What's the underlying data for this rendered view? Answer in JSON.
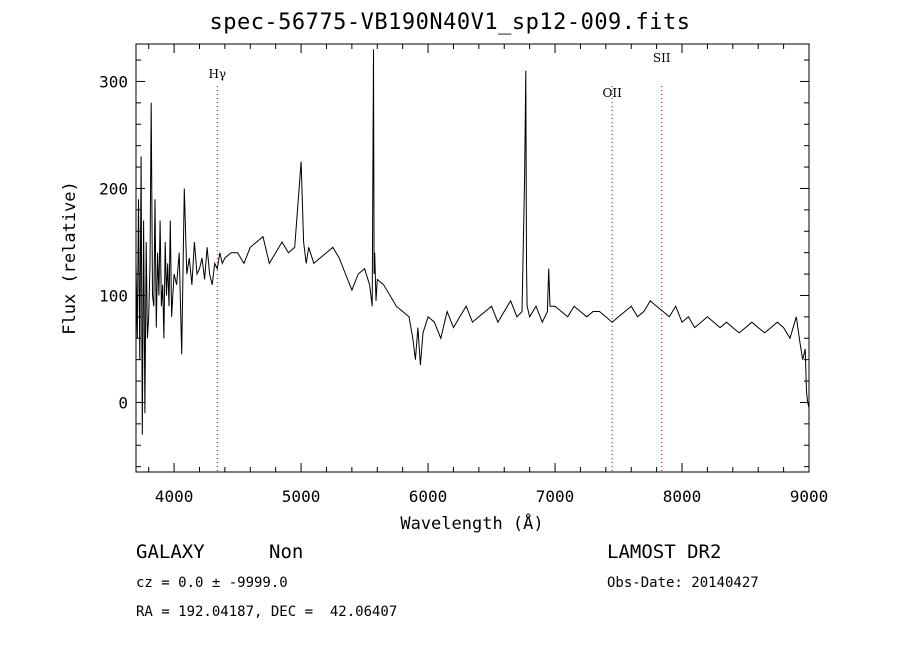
{
  "chart_data": {
    "type": "line",
    "title": "spec-56775-VB190N40V1_sp12-009.fits",
    "xlabel": "Wavelength (Å)",
    "ylabel": "Flux (relative)",
    "xlim": [
      3700,
      9000
    ],
    "ylim": [
      -65,
      335
    ],
    "x_ticks": [
      4000,
      5000,
      6000,
      7000,
      8000,
      9000
    ],
    "y_ticks": [
      0,
      100,
      200,
      300
    ],
    "grid": false,
    "line_color": "#000000",
    "series": [
      {
        "x": [
          3700,
          3710,
          3720,
          3730,
          3740,
          3750,
          3760,
          3770,
          3780,
          3790,
          3800,
          3810,
          3820,
          3830,
          3840,
          3850,
          3860,
          3870,
          3880,
          3890,
          3900,
          3910,
          3920,
          3930,
          3940,
          3950,
          3960,
          3970,
          3980,
          3990,
          4000,
          4020,
          4040,
          4060,
          4080,
          4100,
          4120,
          4140,
          4160,
          4180,
          4200,
          4220,
          4240,
          4260,
          4280,
          4300,
          4320,
          4340,
          4360,
          4380,
          4400,
          4450,
          4500,
          4550,
          4600,
          4650,
          4700,
          4750,
          4800,
          4850,
          4900,
          4950,
          5000,
          5020,
          5040,
          5060,
          5100,
          5150,
          5200,
          5250,
          5300,
          5350,
          5400,
          5450,
          5500,
          5540,
          5560,
          5570,
          5575,
          5580,
          5590,
          5600,
          5650,
          5700,
          5750,
          5800,
          5850,
          5880,
          5900,
          5920,
          5940,
          5960,
          6000,
          6050,
          6100,
          6150,
          6200,
          6250,
          6300,
          6350,
          6400,
          6450,
          6500,
          6550,
          6600,
          6650,
          6700,
          6740,
          6760,
          6770,
          6775,
          6780,
          6790,
          6800,
          6850,
          6900,
          6940,
          6950,
          6960,
          7000,
          7050,
          7100,
          7150,
          7200,
          7250,
          7300,
          7350,
          7400,
          7450,
          7500,
          7550,
          7600,
          7650,
          7700,
          7750,
          7800,
          7850,
          7900,
          7950,
          8000,
          8050,
          8100,
          8150,
          8200,
          8250,
          8300,
          8350,
          8400,
          8450,
          8500,
          8550,
          8600,
          8650,
          8700,
          8750,
          8800,
          8850,
          8900,
          8930,
          8950,
          8970,
          8980,
          8990,
          9000
        ],
        "y": [
          130,
          60,
          190,
          40,
          230,
          -30,
          170,
          -10,
          150,
          60,
          80,
          130,
          280,
          100,
          90,
          190,
          70,
          140,
          100,
          170,
          90,
          110,
          60,
          150,
          100,
          130,
          90,
          170,
          80,
          100,
          120,
          110,
          140,
          45,
          200,
          120,
          135,
          110,
          150,
          120,
          125,
          135,
          115,
          145,
          120,
          110,
          130,
          125,
          140,
          130,
          135,
          140,
          140,
          130,
          145,
          150,
          155,
          130,
          140,
          150,
          140,
          145,
          225,
          150,
          130,
          145,
          130,
          135,
          140,
          145,
          135,
          120,
          105,
          120,
          125,
          110,
          90,
          330,
          120,
          140,
          95,
          115,
          110,
          100,
          90,
          85,
          80,
          60,
          40,
          70,
          35,
          65,
          80,
          75,
          60,
          85,
          70,
          80,
          90,
          75,
          80,
          85,
          90,
          75,
          85,
          95,
          80,
          85,
          210,
          310,
          130,
          90,
          85,
          80,
          90,
          75,
          85,
          125,
          90,
          90,
          85,
          80,
          90,
          85,
          80,
          85,
          85,
          80,
          75,
          80,
          85,
          90,
          80,
          85,
          95,
          90,
          85,
          80,
          90,
          75,
          80,
          70,
          75,
          80,
          75,
          70,
          75,
          70,
          65,
          70,
          75,
          70,
          65,
          70,
          75,
          70,
          60,
          80,
          55,
          40,
          50,
          10,
          0,
          -5
        ]
      }
    ],
    "annotations": [
      {
        "label": "Hγ",
        "x": 4340,
        "line_color": "#cc0000"
      },
      {
        "label": "OII",
        "x": 7450,
        "line_color": "#cc0000"
      },
      {
        "label": "SII",
        "x": 7840,
        "line_color": "#cc0000"
      }
    ]
  },
  "info": {
    "object_class": "GALAXY",
    "subclass": "Non",
    "survey": "LAMOST DR2",
    "cz": "cz = 0.0 ± -9999.0",
    "obs_date": "Obs-Date: 20140427",
    "coords": "RA = 192.04187, DEC =  42.06407"
  }
}
